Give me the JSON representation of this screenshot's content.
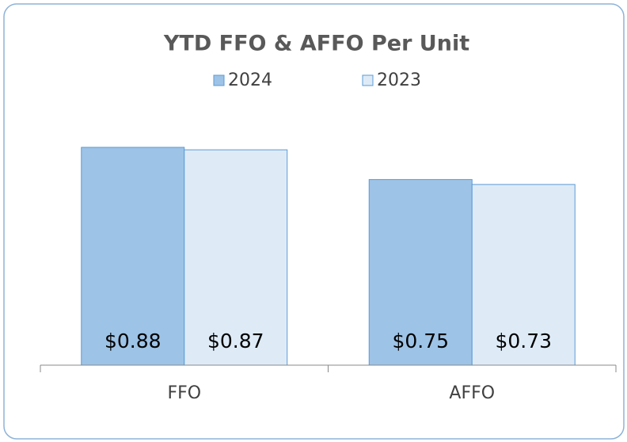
{
  "chart_data": {
    "type": "bar",
    "title": "YTD FFO & AFFO Per Unit",
    "categories": [
      "FFO",
      "AFFO"
    ],
    "series": [
      {
        "name": "2024",
        "color": "#9dc3e6",
        "values": [
          0.88,
          0.75
        ],
        "value_labels": [
          "$0.88",
          "$0.75"
        ]
      },
      {
        "name": "2023",
        "color": "#deebf7",
        "values": [
          0.87,
          0.73
        ],
        "value_labels": [
          "$0.87",
          "$0.73"
        ]
      }
    ],
    "ylim": [
      0,
      1
    ],
    "legend": "top"
  }
}
